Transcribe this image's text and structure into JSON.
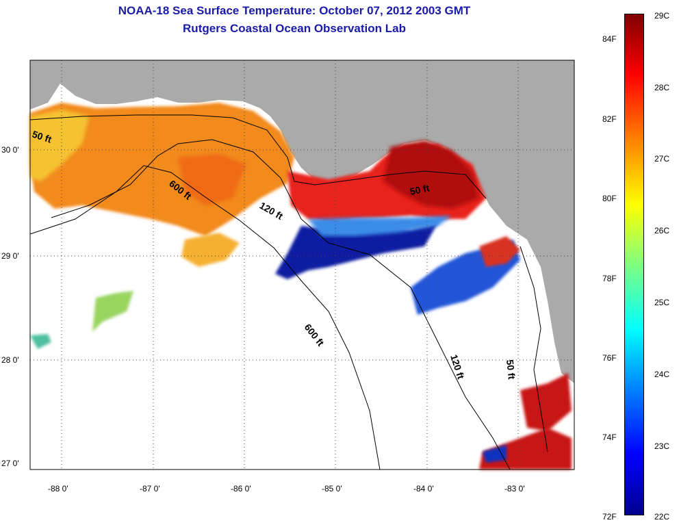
{
  "header": {
    "title_line1": "NOAA-18 Sea Surface Temperature:  October 07, 2012 2003 GMT",
    "title_line2": "Rutgers Coastal Ocean Observation Lab"
  },
  "axes": {
    "lat_labels": [
      "30 0'",
      "29 0'",
      "28 0'",
      "27 0'"
    ],
    "lon_labels": [
      "-88 0'",
      "-87 0'",
      "-86 0'",
      "-85 0'",
      "-84 0'",
      "-83 0'"
    ]
  },
  "contours": {
    "isobath_50": "50 ft",
    "isobath_120": "120 ft",
    "isobath_600": "600 ft"
  },
  "colorbar": {
    "fahrenheit": [
      "84F",
      "82F",
      "80F",
      "78F",
      "76F",
      "74F",
      "72F"
    ],
    "celsius": [
      "29C",
      "28C",
      "27C",
      "26C",
      "25C",
      "24C",
      "23C",
      "22C"
    ]
  },
  "colors": {
    "land": "#aaaaaa",
    "title": "#1a1aa8",
    "cold": "#0a1aa0",
    "warm": "#f28a1e",
    "hot": "#b01010"
  }
}
